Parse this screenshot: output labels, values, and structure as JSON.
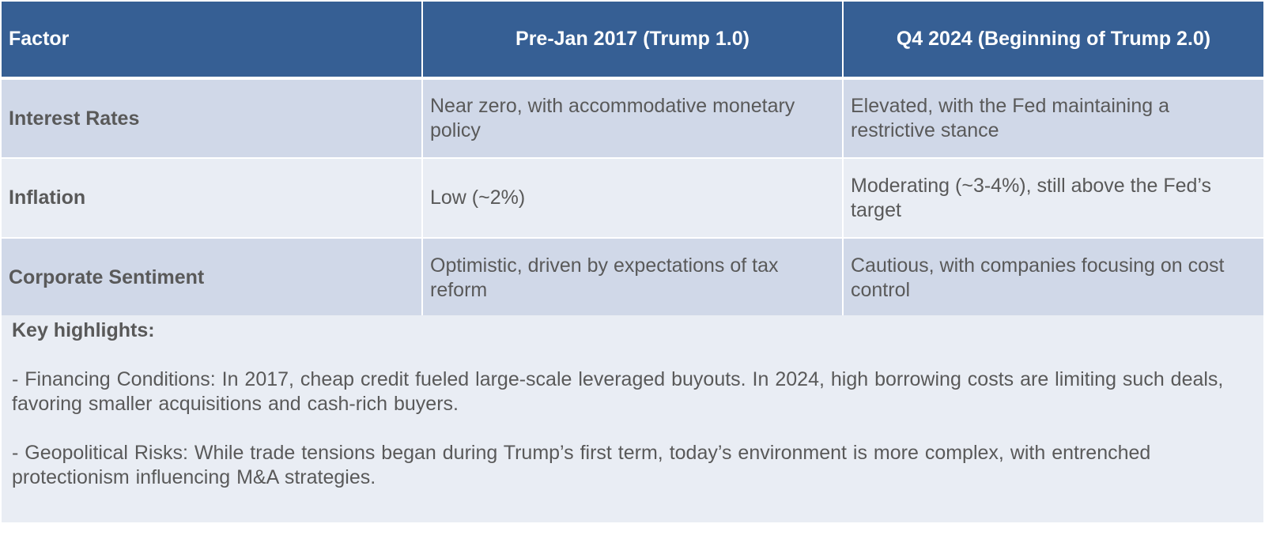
{
  "table": {
    "headers": [
      "Factor",
      "Pre-Jan 2017 (Trump 1.0)",
      "Q4 2024 (Beginning of Trump 2.0)"
    ],
    "rows": [
      {
        "factor": "Interest Rates",
        "pre2017": "Near zero, with accommodative monetary policy",
        "q42024": "Elevated, with the Fed maintaining a restrictive stance"
      },
      {
        "factor": "Inflation",
        "pre2017": "Low (~2%)",
        "q42024": "Moderating (~3-4%), still above the Fed’s target"
      },
      {
        "factor": "Corporate Sentiment",
        "pre2017": "Optimistic, driven by expectations of tax reform",
        "q42024": "Cautious, with companies focusing on cost control"
      }
    ]
  },
  "highlights": {
    "title": "Key highlights:",
    "points": [
      "- Financing Conditions: In 2017, cheap credit fueled large-scale leveraged buyouts. In 2024, high borrowing costs are limiting such deals, favoring smaller acquisitions and cash-rich buyers.",
      "- Geopolitical Risks: While trade tensions began during Trump’s first term, today’s environment is more complex, with entrenched protectionism influencing M&A strategies."
    ]
  },
  "colors": {
    "header_bg": "#365f94",
    "row_dark": "#d0d8e8",
    "row_light": "#e9edf4",
    "text": "#595959"
  }
}
